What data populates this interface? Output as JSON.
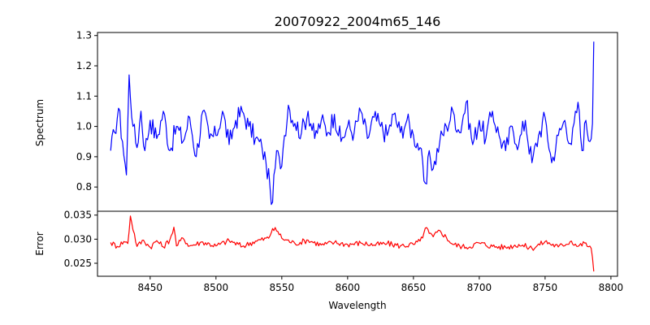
{
  "chart_data": {
    "type": "line",
    "title": "20070922_2004m65_146",
    "xlabel": "Wavelength",
    "xlim": [
      8410,
      8805
    ],
    "xticks": [
      8450,
      8500,
      8550,
      8600,
      8650,
      8700,
      8750,
      8800
    ],
    "panels": [
      {
        "ylabel": "Spectrum",
        "ylim": [
          0.72,
          1.31
        ],
        "yticks": [
          0.8,
          0.9,
          1.0,
          1.1,
          1.2,
          1.3
        ],
        "ytick_labels": [
          "0.8",
          "0.9",
          "1.0",
          "1.1",
          "1.2",
          "1.3"
        ],
        "series": [
          {
            "color": "#0000ff",
            "x": [
              8420,
              8423,
              8426,
              8429,
              8432,
              8434,
              8437,
              8440,
              8443,
              8446,
              8450,
              8455,
              8460,
              8465,
              8470,
              8475,
              8480,
              8485,
              8490,
              8495,
              8500,
              8505,
              8510,
              8515,
              8520,
              8525,
              8530,
              8535,
              8538,
              8541,
              8543,
              8546,
              8549,
              8552,
              8555,
              8560,
              8565,
              8570,
              8575,
              8580,
              8585,
              8590,
              8595,
              8600,
              8605,
              8610,
              8615,
              8620,
              8625,
              8630,
              8635,
              8640,
              8645,
              8650,
              8655,
              8658,
              8660,
              8662,
              8665,
              8670,
              8675,
              8680,
              8685,
              8690,
              8695,
              8700,
              8705,
              8710,
              8715,
              8720,
              8725,
              8730,
              8735,
              8740,
              8745,
              8750,
              8755,
              8760,
              8765,
              8770,
              8775,
              8778,
              8781,
              8784,
              8786,
              8787
            ],
            "y": [
              0.92,
              0.98,
              1.06,
              0.95,
              0.84,
              1.17,
              1.0,
              0.93,
              1.05,
              0.92,
              1.02,
              0.96,
              1.05,
              0.92,
              1.0,
              0.95,
              1.03,
              0.9,
              1.05,
              0.96,
              0.97,
              1.05,
              0.94,
              1.02,
              1.05,
              1.0,
              0.96,
              0.93,
              0.88,
              0.8,
              0.75,
              0.92,
              0.86,
              0.97,
              1.07,
              1.01,
              0.98,
              1.05,
              0.96,
              1.02,
              0.98,
              1.04,
              0.95,
              1.0,
              0.98,
              1.05,
              0.96,
              1.03,
              1.0,
              0.97,
              1.04,
              0.98,
              1.02,
              0.97,
              0.93,
              0.82,
              0.81,
              0.92,
              0.86,
              0.95,
              1.0,
              1.05,
              0.98,
              1.08,
              0.94,
              1.02,
              0.96,
              1.05,
              0.97,
              0.92,
              1.0,
              0.94,
              1.02,
              0.88,
              0.97,
              1.03,
              0.88,
              0.97,
              1.02,
              0.94,
              1.08,
              0.92,
              1.02,
              0.95,
              1.01,
              1.28
            ]
          }
        ]
      },
      {
        "ylabel": "Error",
        "ylim": [
          0.0223,
          0.0358
        ],
        "yticks": [
          0.025,
          0.03,
          0.035
        ],
        "ytick_labels": [
          "0.025",
          "0.030",
          "0.035"
        ],
        "series": [
          {
            "color": "#ff0000",
            "x": [
              8420,
              8425,
              8430,
              8433,
              8435,
              8440,
              8445,
              8450,
              8455,
              8460,
              8465,
              8468,
              8470,
              8475,
              8480,
              8490,
              8500,
              8510,
              8520,
              8530,
              8540,
              8543,
              8547,
              8550,
              8560,
              8570,
              8580,
              8590,
              8600,
              8610,
              8620,
              8630,
              8640,
              8650,
              8655,
              8660,
              8662,
              8665,
              8670,
              8680,
              8690,
              8700,
              8710,
              8720,
              8730,
              8740,
              8750,
              8760,
              8770,
              8775,
              8780,
              8785,
              8787
            ],
            "y": [
              0.0293,
              0.0285,
              0.0295,
              0.0291,
              0.0348,
              0.0285,
              0.0298,
              0.0283,
              0.0297,
              0.0284,
              0.0299,
              0.0325,
              0.0286,
              0.0302,
              0.0286,
              0.0294,
              0.0286,
              0.0297,
              0.0285,
              0.0296,
              0.0302,
              0.0322,
              0.0316,
              0.0302,
              0.0291,
              0.0298,
              0.0288,
              0.0293,
              0.0289,
              0.0292,
              0.0288,
              0.0291,
              0.0286,
              0.0289,
              0.0296,
              0.0324,
              0.0312,
              0.0305,
              0.0318,
              0.0289,
              0.0283,
              0.0292,
              0.0285,
              0.0283,
              0.0289,
              0.0281,
              0.0295,
              0.0284,
              0.0296,
              0.0285,
              0.0292,
              0.0281,
              0.0233
            ]
          }
        ]
      }
    ]
  }
}
